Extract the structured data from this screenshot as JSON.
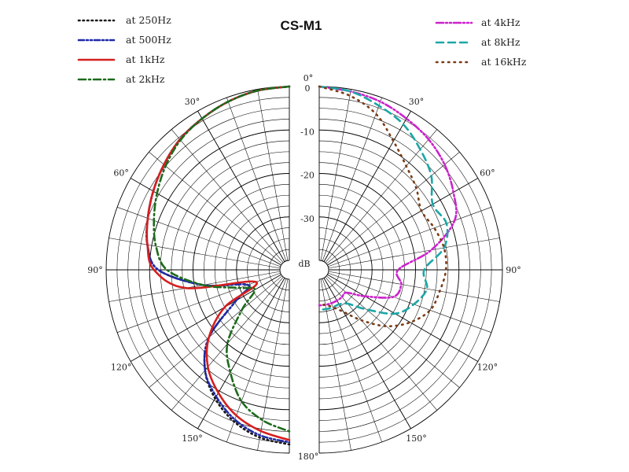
{
  "chart_data": {
    "type": "polar-line",
    "title": "CS-M1",
    "unit_label": "dB",
    "angle_labels": [
      "0°",
      "30°",
      "60°",
      "90°",
      "120°",
      "150°",
      "180°"
    ],
    "angle_ticks": [
      0,
      30,
      60,
      90,
      120,
      150,
      180
    ],
    "db_labels": [
      "0",
      "-10",
      "-20",
      "-30"
    ],
    "db_ticks": [
      0,
      -10,
      -20,
      -30
    ],
    "rlim": [
      -40,
      0
    ],
    "grid": true,
    "legend_left": [
      "at 250Hz",
      "at 500Hz",
      "at 1kHz",
      "at 2kHz"
    ],
    "legend_right": [
      "at 4kHz",
      "at 8kHz",
      "at 16kHz"
    ],
    "series": [
      {
        "name": "at 250Hz",
        "side": "left",
        "color": "#1a1a1a",
        "dash": "1.5 4",
        "angles": [
          0,
          10,
          20,
          30,
          40,
          50,
          60,
          70,
          80,
          90,
          100,
          110,
          120,
          130,
          140,
          150,
          160,
          170,
          180
        ],
        "values": [
          0,
          -0.3,
          -1,
          -2,
          -3,
          -4.5,
          -6,
          -7.5,
          -9,
          -12,
          -22,
          -32,
          -28,
          -18,
          -12,
          -8,
          -5,
          -3,
          -2
        ]
      },
      {
        "name": "at 500Hz",
        "side": "left",
        "color": "#1f2aa8",
        "dash": "7 3 2 3 2 3",
        "angles": [
          0,
          10,
          20,
          30,
          40,
          50,
          60,
          70,
          80,
          90,
          100,
          110,
          120,
          130,
          140,
          150,
          160,
          170,
          180
        ],
        "values": [
          0,
          -0.3,
          -1,
          -2,
          -3,
          -4.5,
          -6,
          -7.5,
          -9,
          -12,
          -22,
          -32,
          -28,
          -18,
          -12,
          -8.5,
          -5.5,
          -3.5,
          -2.5
        ]
      },
      {
        "name": "at 1kHz",
        "side": "left",
        "color": "#d61f1f",
        "dash": "",
        "angles": [
          0,
          10,
          20,
          30,
          40,
          50,
          60,
          70,
          80,
          90,
          100,
          110,
          120,
          130,
          140,
          150,
          160,
          170,
          180
        ],
        "values": [
          0,
          -0.3,
          -1,
          -2,
          -3,
          -4.5,
          -6,
          -7.5,
          -9,
          -11,
          -18,
          -34,
          -25,
          -18,
          -13,
          -9.5,
          -6.5,
          -4.5,
          -3
        ]
      },
      {
        "name": "at 2kHz",
        "side": "left",
        "color": "#1c6b1c",
        "dash": "9 4 2 4",
        "angles": [
          0,
          10,
          20,
          30,
          40,
          50,
          60,
          70,
          80,
          90,
          100,
          110,
          120,
          130,
          140,
          150,
          160,
          170,
          180
        ],
        "values": [
          0,
          -0.3,
          -1,
          -2,
          -3.2,
          -5,
          -7,
          -9,
          -11,
          -14,
          -22,
          -30,
          -33,
          -28,
          -20,
          -15,
          -10,
          -7,
          -5
        ]
      },
      {
        "name": "at 4kHz",
        "side": "right",
        "color": "#cc22cc",
        "dash": "9 3 2 3 2 3",
        "angles": [
          0,
          10,
          20,
          30,
          40,
          50,
          60,
          70,
          80,
          90,
          100,
          110,
          120,
          130,
          140,
          150,
          160,
          170,
          180
        ],
        "values": [
          0,
          -0.5,
          -1,
          -2,
          -3,
          -4.5,
          -6.5,
          -9,
          -16,
          -24,
          -23,
          -24,
          -30,
          -34,
          -34,
          -34,
          -34,
          -34,
          -34
        ]
      },
      {
        "name": "at 8kHz",
        "side": "right",
        "color": "#1ca6a6",
        "dash": "9 6",
        "angles": [
          0,
          10,
          20,
          30,
          40,
          50,
          60,
          70,
          80,
          90,
          100,
          110,
          120,
          130,
          140,
          150,
          160,
          170,
          180
        ],
        "values": [
          0,
          -0.5,
          -2,
          -3.5,
          -6,
          -8.5,
          -12,
          -11,
          -13,
          -18,
          -17,
          -19,
          -22,
          -28,
          -32,
          -33,
          -33,
          -33,
          -33
        ]
      },
      {
        "name": "at 16kHz",
        "side": "right",
        "color": "#7a3b14",
        "dash": "1.5 6",
        "angles": [
          0,
          10,
          20,
          30,
          40,
          50,
          60,
          70,
          80,
          90,
          100,
          110,
          120,
          130,
          140,
          150,
          160,
          170,
          180
        ],
        "values": [
          0,
          -1.5,
          -4,
          -8,
          -11,
          -13,
          -15,
          -14,
          -13,
          -13,
          -14,
          -15,
          -18,
          -22,
          -27,
          -31,
          -33,
          -34,
          -34
        ]
      }
    ]
  }
}
